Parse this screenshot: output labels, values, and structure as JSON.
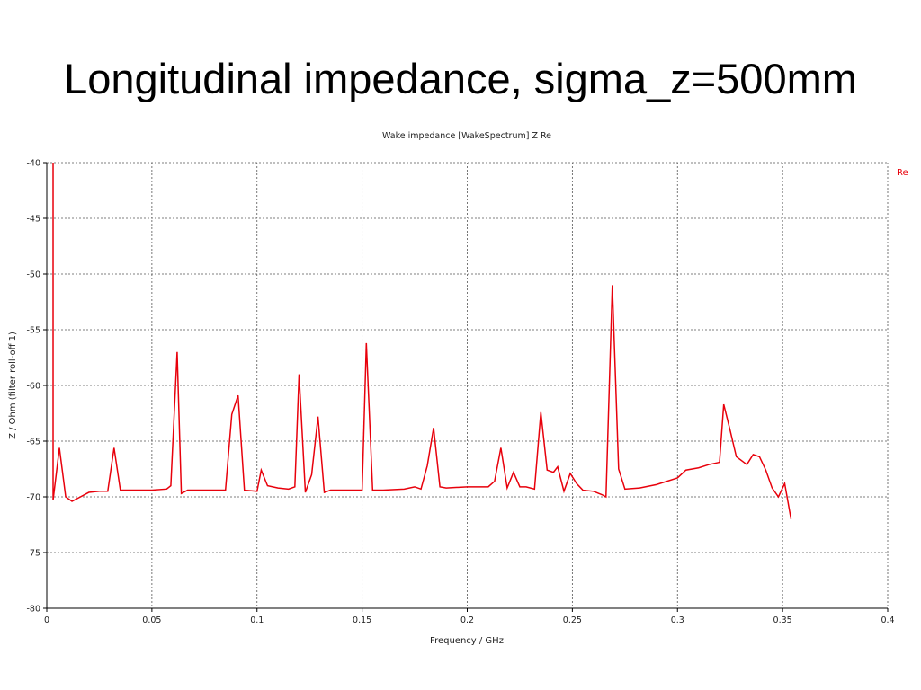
{
  "slide": {
    "title": "Longitudinal impedance, sigma_z=500mm"
  },
  "chart_data": {
    "type": "line",
    "title": "Wake impedance [WakeSpectrum] Z Re",
    "xlabel": "Frequency / GHz",
    "ylabel": "Z / Ohm (filter roll-off 1)",
    "xlim": [
      0,
      0.4
    ],
    "ylim": [
      -80,
      -40
    ],
    "xticks": [
      "0",
      "0.05",
      "0.1",
      "0.15",
      "0.2",
      "0.25",
      "0.3",
      "0.35",
      "0.4"
    ],
    "yticks": [
      "-40",
      "-45",
      "-50",
      "-55",
      "-60",
      "-65",
      "-70",
      "-75",
      "-80"
    ],
    "grid": true,
    "legend_position": "top-right",
    "colors": {
      "series": "#e8000b",
      "grid": "#555555",
      "axis": "#000000"
    },
    "series": [
      {
        "name": "Re",
        "x": [
          0.003,
          0.003,
          0.006,
          0.009,
          0.012,
          0.015,
          0.02,
          0.025,
          0.029,
          0.032,
          0.035,
          0.04,
          0.05,
          0.057,
          0.059,
          0.062,
          0.064,
          0.067,
          0.075,
          0.085,
          0.088,
          0.091,
          0.094,
          0.1,
          0.102,
          0.105,
          0.11,
          0.115,
          0.118,
          0.12,
          0.123,
          0.126,
          0.129,
          0.132,
          0.135,
          0.14,
          0.15,
          0.152,
          0.155,
          0.16,
          0.17,
          0.175,
          0.178,
          0.181,
          0.184,
          0.187,
          0.19,
          0.2,
          0.21,
          0.213,
          0.216,
          0.219,
          0.222,
          0.225,
          0.228,
          0.232,
          0.235,
          0.238,
          0.241,
          0.243,
          0.246,
          0.249,
          0.252,
          0.255,
          0.26,
          0.264,
          0.266,
          0.269,
          0.272,
          0.275,
          0.282,
          0.29,
          0.3,
          0.304,
          0.31,
          0.315,
          0.32,
          0.322,
          0.325,
          0.328,
          0.333,
          0.336,
          0.339,
          0.342,
          0.345,
          0.348,
          0.351,
          0.354
        ],
        "values": [
          -40.0,
          -70.3,
          -65.6,
          -70.0,
          -70.4,
          -70.1,
          -69.6,
          -69.5,
          -69.5,
          -65.6,
          -69.4,
          -69.4,
          -69.4,
          -69.3,
          -69.0,
          -57.0,
          -69.7,
          -69.4,
          -69.4,
          -69.4,
          -62.6,
          -60.9,
          -69.4,
          -69.5,
          -67.6,
          -69.0,
          -69.2,
          -69.3,
          -69.1,
          -59.0,
          -69.6,
          -68.0,
          -62.8,
          -69.6,
          -69.4,
          -69.4,
          -69.4,
          -56.2,
          -69.4,
          -69.4,
          -69.3,
          -69.1,
          -69.3,
          -67.2,
          -63.8,
          -69.1,
          -69.2,
          -69.1,
          -69.1,
          -68.6,
          -65.6,
          -69.2,
          -67.8,
          -69.1,
          -69.1,
          -69.3,
          -62.4,
          -67.6,
          -67.8,
          -67.3,
          -69.5,
          -67.9,
          -68.8,
          -69.4,
          -69.5,
          -69.8,
          -70.0,
          -51.0,
          -67.5,
          -69.3,
          -69.2,
          -68.9,
          -68.3,
          -67.6,
          -67.4,
          -67.1,
          -66.9,
          -61.7,
          -64.0,
          -66.4,
          -67.1,
          -66.2,
          -66.4,
          -67.6,
          -69.2,
          -70.0,
          -68.8,
          -72.0
        ]
      }
    ]
  }
}
